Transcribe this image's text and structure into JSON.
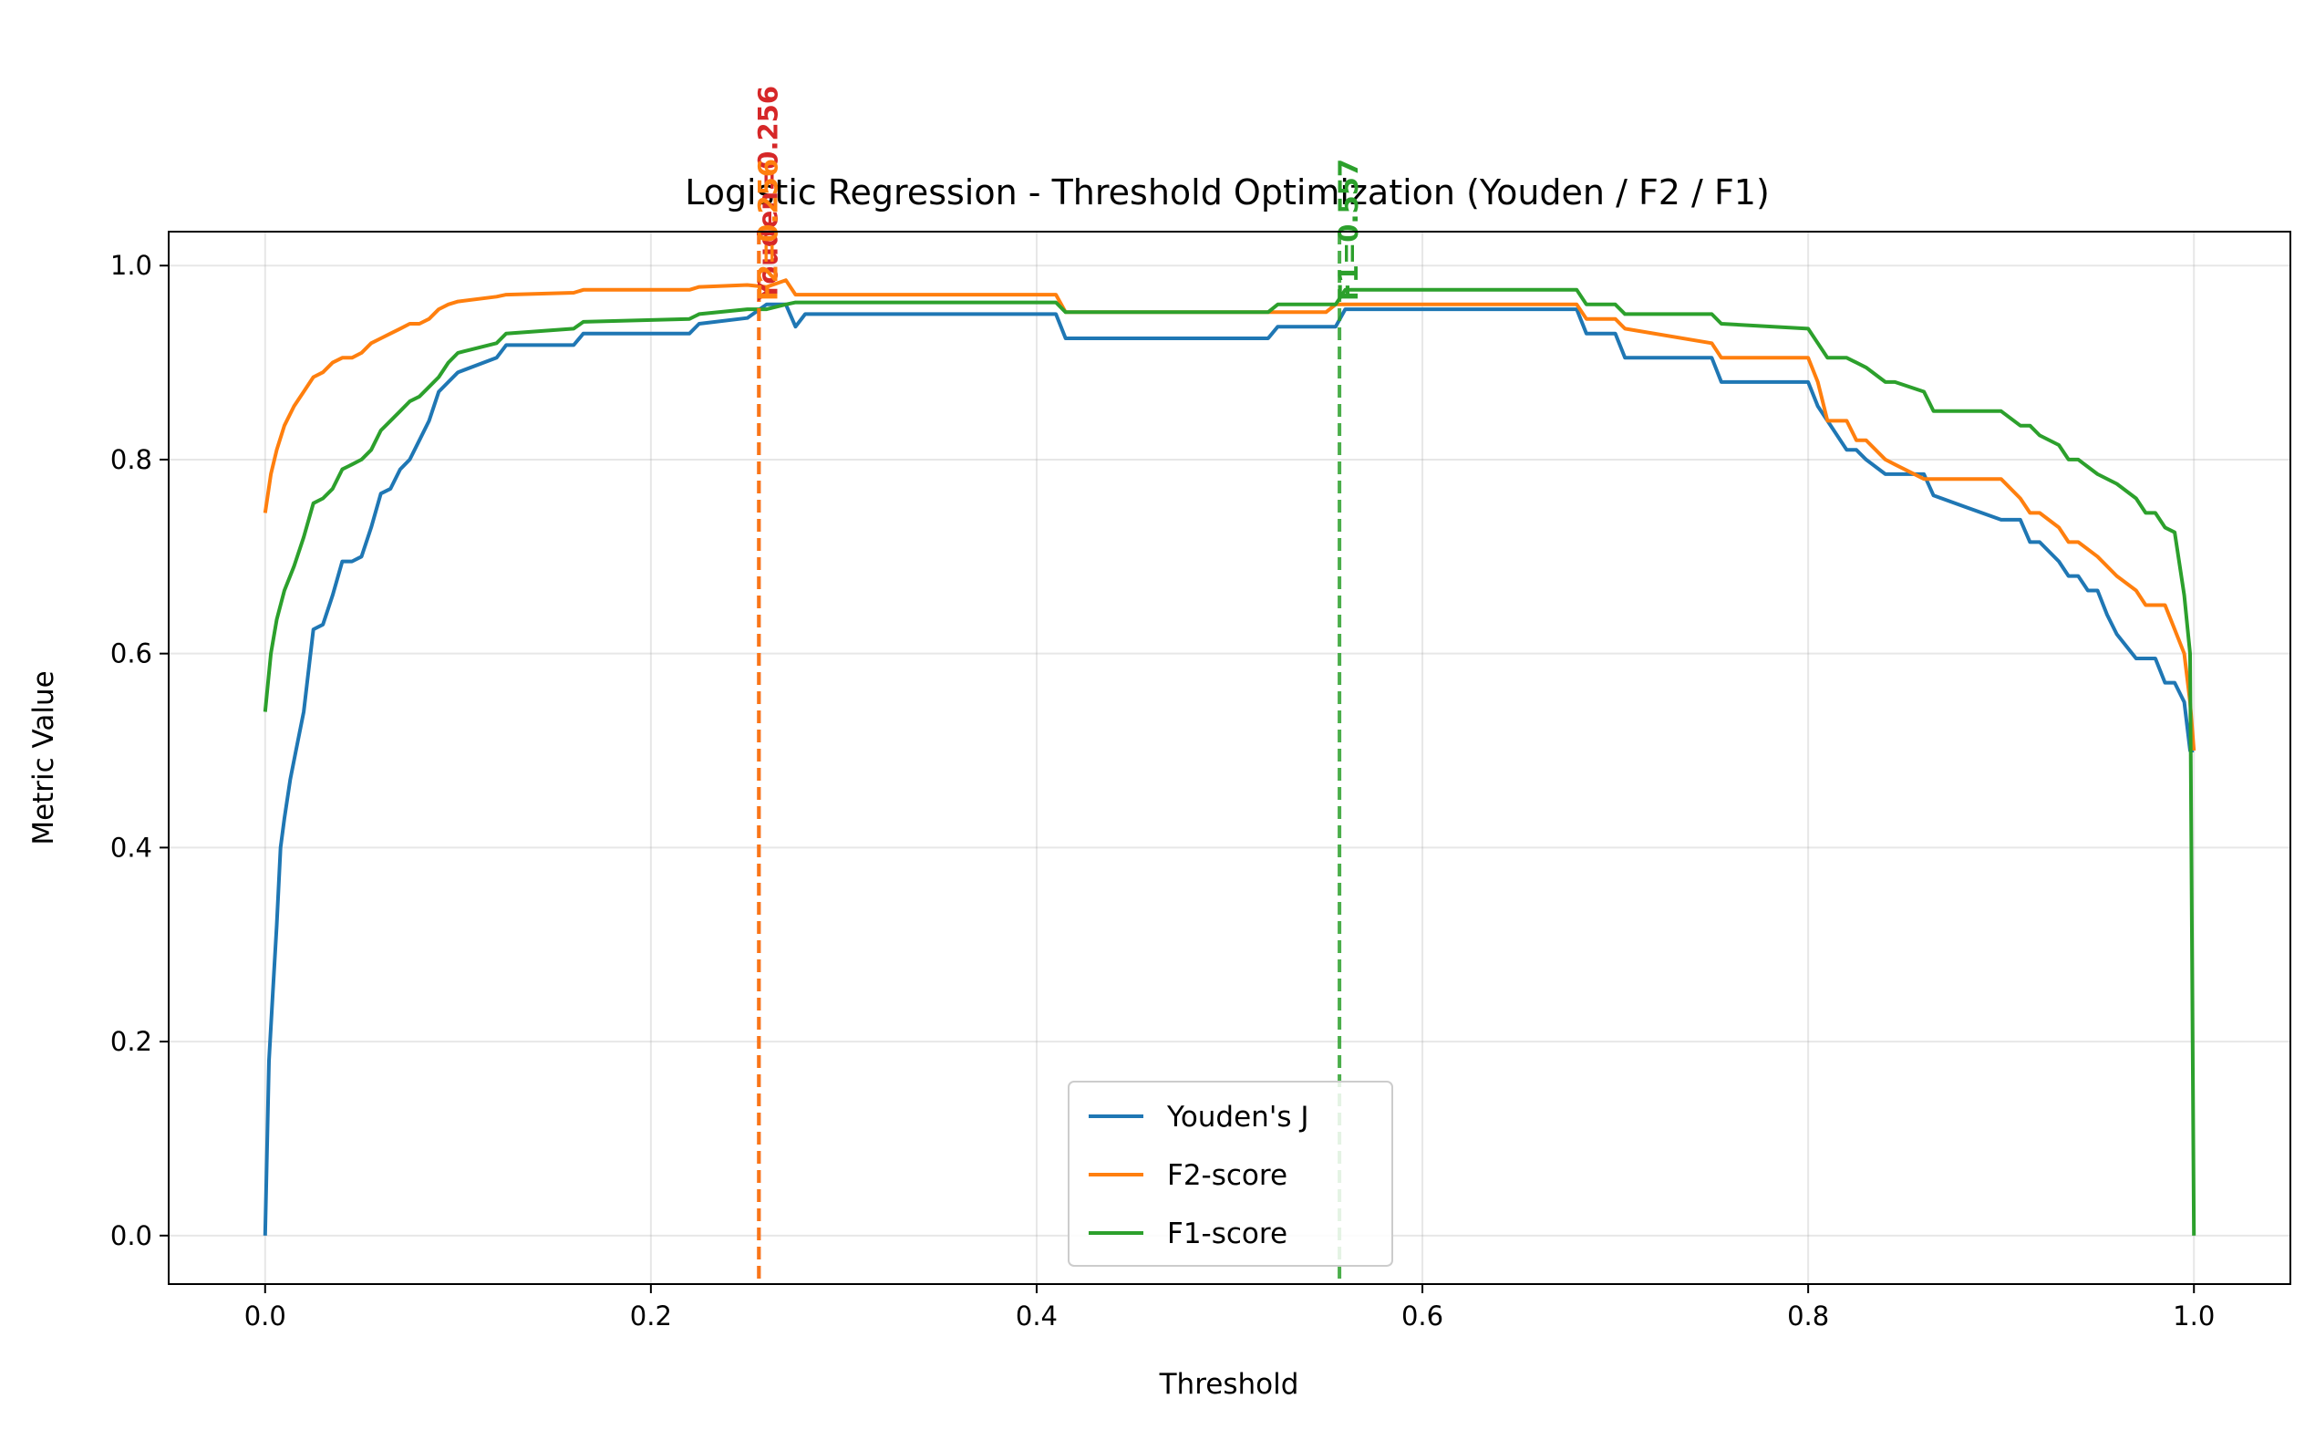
{
  "chart_data": {
    "type": "line",
    "title": "Logistic Regression - Threshold Optimization (Youden / F2 / F1)",
    "xlabel": "Threshold",
    "ylabel": "Metric Value",
    "xlim": [
      -0.05,
      1.05
    ],
    "ylim": [
      -0.05,
      1.035
    ],
    "xticks": [
      0.0,
      0.2,
      0.4,
      0.6,
      0.8,
      1.0
    ],
    "xtick_labels": [
      "0.0",
      "0.2",
      "0.4",
      "0.6",
      "0.8",
      "1.0"
    ],
    "yticks": [
      0.0,
      0.2,
      0.4,
      0.6,
      0.8,
      1.0
    ],
    "ytick_labels": [
      "0.0",
      "0.2",
      "0.4",
      "0.6",
      "0.8",
      "1.0"
    ],
    "grid": true,
    "legend_position": "lower-center",
    "series": [
      {
        "name": "Youden's J",
        "color": "#1f77b4",
        "x": [
          0.0,
          0.002,
          0.004,
          0.006,
          0.008,
          0.01,
          0.013,
          0.016,
          0.02,
          0.025,
          0.03,
          0.035,
          0.04,
          0.045,
          0.05,
          0.055,
          0.06,
          0.065,
          0.07,
          0.075,
          0.08,
          0.085,
          0.09,
          0.095,
          0.1,
          0.12,
          0.125,
          0.16,
          0.165,
          0.22,
          0.225,
          0.25,
          0.26,
          0.27,
          0.275,
          0.28,
          0.41,
          0.415,
          0.52,
          0.525,
          0.555,
          0.56,
          0.68,
          0.685,
          0.7,
          0.705,
          0.75,
          0.755,
          0.8,
          0.805,
          0.81,
          0.82,
          0.825,
          0.83,
          0.84,
          0.845,
          0.86,
          0.865,
          0.9,
          0.91,
          0.915,
          0.92,
          0.93,
          0.935,
          0.94,
          0.945,
          0.95,
          0.955,
          0.96,
          0.97,
          0.975,
          0.98,
          0.985,
          0.99,
          0.995,
          0.998,
          1.0
        ],
        "y": [
          0.0,
          0.18,
          0.25,
          0.32,
          0.4,
          0.43,
          0.47,
          0.5,
          0.54,
          0.625,
          0.63,
          0.66,
          0.695,
          0.695,
          0.7,
          0.73,
          0.765,
          0.77,
          0.79,
          0.8,
          0.82,
          0.84,
          0.87,
          0.88,
          0.89,
          0.905,
          0.918,
          0.918,
          0.93,
          0.93,
          0.94,
          0.946,
          0.96,
          0.96,
          0.937,
          0.95,
          0.95,
          0.925,
          0.925,
          0.937,
          0.937,
          0.955,
          0.955,
          0.93,
          0.93,
          0.905,
          0.905,
          0.88,
          0.88,
          0.855,
          0.84,
          0.81,
          0.81,
          0.8,
          0.785,
          0.785,
          0.785,
          0.763,
          0.738,
          0.738,
          0.715,
          0.715,
          0.695,
          0.68,
          0.68,
          0.665,
          0.665,
          0.64,
          0.62,
          0.595,
          0.595,
          0.595,
          0.57,
          0.57,
          0.55,
          0.5,
          0.5
        ]
      },
      {
        "name": "F2-score",
        "color": "#ff7f0e",
        "x": [
          0.0,
          0.003,
          0.006,
          0.01,
          0.015,
          0.02,
          0.025,
          0.03,
          0.035,
          0.04,
          0.045,
          0.05,
          0.055,
          0.06,
          0.065,
          0.07,
          0.075,
          0.08,
          0.085,
          0.09,
          0.095,
          0.1,
          0.12,
          0.125,
          0.16,
          0.165,
          0.22,
          0.225,
          0.25,
          0.26,
          0.27,
          0.275,
          0.28,
          0.41,
          0.415,
          0.55,
          0.555,
          0.56,
          0.68,
          0.685,
          0.7,
          0.705,
          0.75,
          0.755,
          0.8,
          0.805,
          0.81,
          0.82,
          0.825,
          0.83,
          0.84,
          0.845,
          0.86,
          0.865,
          0.9,
          0.91,
          0.915,
          0.92,
          0.93,
          0.935,
          0.94,
          0.95,
          0.96,
          0.97,
          0.975,
          0.98,
          0.985,
          0.99,
          0.995,
          0.998,
          1.0
        ],
        "y": [
          0.745,
          0.785,
          0.81,
          0.835,
          0.855,
          0.87,
          0.885,
          0.89,
          0.9,
          0.905,
          0.905,
          0.91,
          0.92,
          0.925,
          0.93,
          0.935,
          0.94,
          0.94,
          0.945,
          0.955,
          0.96,
          0.963,
          0.968,
          0.97,
          0.972,
          0.975,
          0.975,
          0.978,
          0.98,
          0.978,
          0.985,
          0.97,
          0.97,
          0.97,
          0.952,
          0.952,
          0.96,
          0.96,
          0.96,
          0.945,
          0.945,
          0.935,
          0.92,
          0.905,
          0.905,
          0.88,
          0.84,
          0.84,
          0.82,
          0.82,
          0.8,
          0.795,
          0.78,
          0.78,
          0.78,
          0.76,
          0.745,
          0.745,
          0.73,
          0.715,
          0.715,
          0.7,
          0.68,
          0.665,
          0.65,
          0.65,
          0.65,
          0.625,
          0.6,
          0.55,
          0.5
        ]
      },
      {
        "name": "F1-score",
        "color": "#2ca02c",
        "x": [
          0.0,
          0.003,
          0.006,
          0.01,
          0.015,
          0.02,
          0.025,
          0.03,
          0.035,
          0.04,
          0.045,
          0.05,
          0.055,
          0.06,
          0.065,
          0.07,
          0.075,
          0.08,
          0.085,
          0.09,
          0.095,
          0.1,
          0.12,
          0.125,
          0.16,
          0.165,
          0.22,
          0.225,
          0.25,
          0.26,
          0.27,
          0.275,
          0.28,
          0.41,
          0.415,
          0.52,
          0.525,
          0.555,
          0.56,
          0.68,
          0.685,
          0.7,
          0.705,
          0.75,
          0.755,
          0.8,
          0.805,
          0.81,
          0.82,
          0.825,
          0.83,
          0.84,
          0.845,
          0.86,
          0.865,
          0.9,
          0.91,
          0.915,
          0.92,
          0.93,
          0.935,
          0.94,
          0.95,
          0.96,
          0.97,
          0.975,
          0.98,
          0.985,
          0.99,
          0.995,
          0.998,
          1.0
        ],
        "y": [
          0.54,
          0.6,
          0.635,
          0.665,
          0.69,
          0.72,
          0.755,
          0.76,
          0.77,
          0.79,
          0.795,
          0.8,
          0.81,
          0.83,
          0.84,
          0.85,
          0.86,
          0.865,
          0.875,
          0.885,
          0.9,
          0.91,
          0.92,
          0.93,
          0.935,
          0.942,
          0.945,
          0.95,
          0.955,
          0.955,
          0.96,
          0.962,
          0.962,
          0.962,
          0.952,
          0.952,
          0.96,
          0.96,
          0.975,
          0.975,
          0.96,
          0.96,
          0.95,
          0.95,
          0.94,
          0.935,
          0.92,
          0.905,
          0.905,
          0.9,
          0.895,
          0.88,
          0.88,
          0.87,
          0.85,
          0.85,
          0.835,
          0.835,
          0.825,
          0.815,
          0.8,
          0.8,
          0.785,
          0.775,
          0.76,
          0.745,
          0.745,
          0.73,
          0.725,
          0.66,
          0.6,
          0.0
        ]
      }
    ],
    "vlines": [
      {
        "x": 0.256,
        "color": "#d62728",
        "label": "Youden=0.256"
      },
      {
        "x": 0.256,
        "color": "#ff7f0e",
        "label": "F2=0.256"
      },
      {
        "x": 0.557,
        "color": "#2ca02c",
        "label": "F1=0.557"
      }
    ]
  }
}
